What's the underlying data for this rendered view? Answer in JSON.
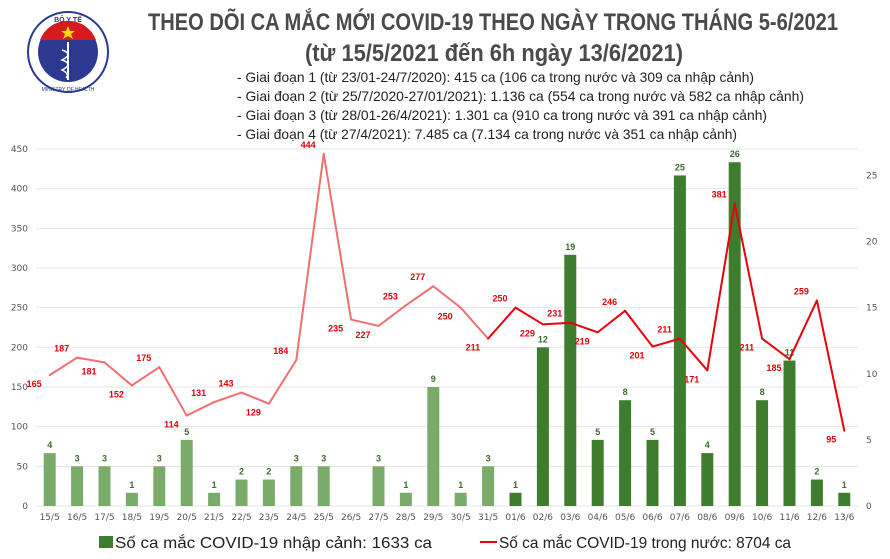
{
  "header": {
    "title_line1": "THEO DÕI CA MẮC MỚI COVID-19 THEO NGÀY TRONG THÁNG 5-6/2021",
    "title_line2": "(từ 15/5/2021 đến 6h ngày 13/6/2021)",
    "notes": [
      "- Giai đoạn 1 (từ 23/01-24/7/2020): 415 ca (106 ca trong nước và 309 ca nhập cảnh)",
      "- Giai đoạn 2 (từ 25/7/2020-27/01/2021): 1.136 ca (554 ca trong nước và 582 ca nhập cảnh)",
      "- Giai đoạn 3 (từ 28/01-26/4/2021): 1.301 ca (910 ca trong nước và 391 ca nhập cảnh)",
      "- Giai đoạn 4 (từ 27/4/2021): 7.485 ca (7.134 ca trong nước và 351 ca nhập cảnh)"
    ]
  },
  "logo": {
    "top_text": "BỘ Y TẾ",
    "bottom_text": "MINISTRY OF HEALTH"
  },
  "chart_data": {
    "type": "bar+line",
    "categories": [
      "15/5",
      "16/5",
      "17/5",
      "18/5",
      "19/5",
      "20/5",
      "21/5",
      "22/5",
      "23/5",
      "24/5",
      "25/5",
      "26/5",
      "27/5",
      "28/5",
      "29/5",
      "30/5",
      "31/5",
      "01/6",
      "02/6",
      "03/6",
      "04/6",
      "05/6",
      "06/6",
      "07/6",
      "08/6",
      "09/6",
      "10/6",
      "11/6",
      "12/6",
      "13/6"
    ],
    "series": [
      {
        "name": "Số ca mắc COVID-19 nhập cảnh: 1633 ca",
        "type": "bar",
        "axis": "right",
        "values": [
          4,
          3,
          3,
          1,
          3,
          5,
          1,
          2,
          2,
          3,
          3,
          0,
          3,
          1,
          9,
          1,
          3,
          1,
          12,
          19,
          5,
          8,
          5,
          25,
          4,
          26,
          8,
          11,
          2,
          1
        ],
        "color": "#3f7d2e",
        "faded_color": "#7aab69"
      },
      {
        "name": "Số ca mắc COVID-19 trong nước: 8704 ca",
        "type": "line",
        "axis": "left",
        "values": [
          165,
          187,
          181,
          152,
          175,
          114,
          131,
          143,
          129,
          184,
          444,
          235,
          227,
          253,
          277,
          250,
          211,
          250,
          229,
          231,
          219,
          246,
          201,
          211,
          171,
          381,
          211,
          185,
          259,
          95
        ],
        "color": "#e8000b",
        "faded_color": "#f07070"
      }
    ],
    "y_left": {
      "range": [
        0,
        450
      ],
      "ticks": [
        0,
        50,
        100,
        150,
        200,
        250,
        300,
        350,
        400,
        450
      ]
    },
    "y_right": {
      "range": [
        0,
        27
      ],
      "ticks": [
        0,
        5,
        10,
        15,
        20,
        25
      ]
    },
    "grid": true,
    "legend": "bottom"
  }
}
